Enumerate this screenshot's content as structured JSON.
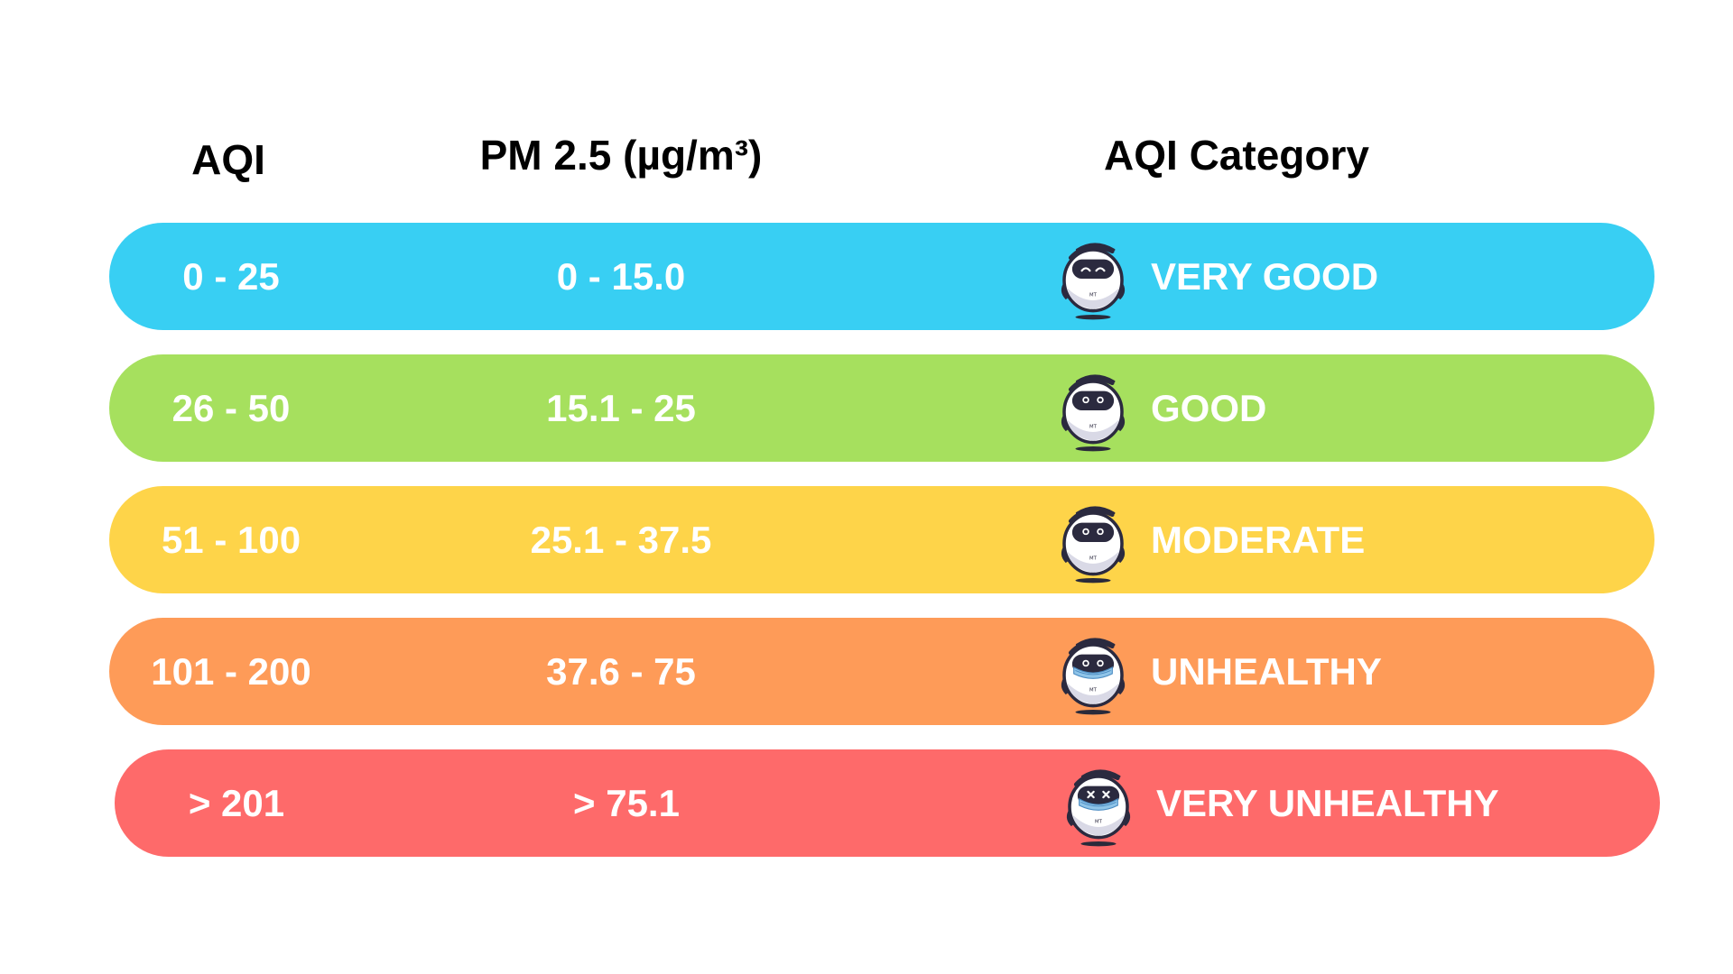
{
  "headers": {
    "aqi": "AQI",
    "pm25": "PM 2.5 (µg/m³)",
    "category": "AQI Category"
  },
  "rows": [
    {
      "aqi": "0 - 25",
      "pm25": "0 - 15.0",
      "category": "VERY GOOD",
      "color": "#38CFF3",
      "face": "happy",
      "mask": false,
      "mascot_icon": "robot-mascot-happy-icon"
    },
    {
      "aqi": "26 - 50",
      "pm25": "15.1 - 25",
      "category": "GOOD",
      "color": "#A6E05E",
      "face": "neutral",
      "mask": false,
      "mascot_icon": "robot-mascot-neutral-icon"
    },
    {
      "aqi": "51 - 100",
      "pm25": "25.1 - 37.5",
      "category": "MODERATE",
      "color": "#FED449",
      "face": "neutral",
      "mask": false,
      "mascot_icon": "robot-mascot-neutral-icon"
    },
    {
      "aqi": "101 - 200",
      "pm25": "37.6 - 75",
      "category": "UNHEALTHY",
      "color": "#FE9B58",
      "face": "masked",
      "mask": true,
      "mascot_icon": "robot-mascot-masked-icon"
    },
    {
      "aqi": "> 201",
      "pm25": "> 75.1",
      "category": "VERY UNHEALTHY",
      "color": "#FE6A6A",
      "face": "dizzy",
      "mask": true,
      "mascot_icon": "robot-mascot-dizzy-masked-icon"
    }
  ]
}
